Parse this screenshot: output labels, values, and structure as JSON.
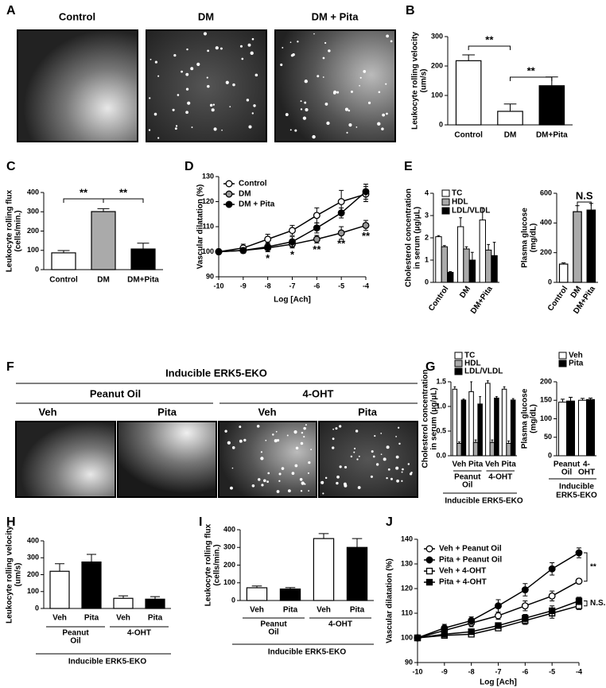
{
  "figure": {
    "panel_a": {
      "label": "A",
      "titles": [
        "Control",
        "DM",
        "DM + Pita"
      ]
    },
    "panel_f": {
      "label": "F",
      "title": "Inducible ERK5-EKO",
      "groups": [
        "Peanut Oil",
        "4-OHT"
      ],
      "treatments": [
        "Veh",
        "Pita",
        "Veh",
        "Pita"
      ]
    }
  },
  "chart_data": [
    {
      "type": "bar",
      "panel": "B",
      "categories": [
        "Control",
        "DM",
        "DM+Pita"
      ],
      "values": [
        218,
        46,
        133
      ],
      "errors": [
        20,
        25,
        30
      ],
      "colors": [
        "#ffffff",
        "#ffffff",
        "#000000"
      ],
      "ylim": [
        0,
        300
      ],
      "yticks": [
        0,
        100,
        200,
        300
      ],
      "ylabel": [
        "Leukocyte rolling velocity",
        "(um/s)"
      ],
      "annotations": [
        "**",
        "**"
      ]
    },
    {
      "type": "bar",
      "panel": "C",
      "categories": [
        "Control",
        "DM",
        "DM+Pita"
      ],
      "values": [
        87,
        301,
        107
      ],
      "errors": [
        12,
        15,
        30
      ],
      "colors": [
        "#ffffff",
        "#aaaaaa",
        "#000000"
      ],
      "ylim": [
        0,
        400
      ],
      "yticks": [
        0,
        100,
        200,
        300,
        400
      ],
      "ylabel": [
        "Leukocyte rolling flux",
        "(cells/min.)"
      ],
      "annotations": [
        "**",
        "**"
      ]
    },
    {
      "type": "line",
      "panel": "D",
      "x": [
        -10,
        -9,
        -8,
        -7,
        -6,
        -5,
        -4
      ],
      "xlim": [
        -10,
        -4
      ],
      "xticks": [
        -10,
        -9,
        -8,
        -7,
        -6,
        -5,
        -4
      ],
      "ylim": [
        90,
        130
      ],
      "yticks": [
        90,
        100,
        110,
        120,
        130
      ],
      "xlabel": "Log [Ach]",
      "ylabel": [
        "Vascular dilatation (%)"
      ],
      "series": [
        {
          "name": "Control",
          "color": "#ffffff",
          "marker": "circle",
          "values": [
            100,
            101.5,
            105,
            108.5,
            114.5,
            120,
            123
          ],
          "errors": [
            1,
            1.5,
            2,
            2,
            3,
            4.5,
            3
          ]
        },
        {
          "name": "DM",
          "color": "#999999",
          "marker": "circle",
          "values": [
            100,
            100.5,
            101.5,
            103,
            105,
            107.5,
            110.5
          ],
          "errors": [
            1,
            1,
            1.5,
            1.5,
            1.5,
            2.5,
            2
          ]
        },
        {
          "name": "DM + Pita",
          "color": "#000000",
          "marker": "circle",
          "values": [
            100,
            100.5,
            102,
            104,
            109.5,
            115.5,
            124
          ],
          "errors": [
            1,
            1,
            1.5,
            2,
            2,
            2,
            3
          ]
        }
      ],
      "annotations": [
        "*",
        "*",
        "**",
        "**",
        "**"
      ]
    },
    {
      "type": "grouped_bar",
      "panel": "E",
      "categories": [
        "Control",
        "DM",
        "DM+Pita"
      ],
      "ylim": [
        0,
        4
      ],
      "yticks": [
        0,
        1,
        2,
        3,
        4
      ],
      "ylabel": [
        "Cholesterol concentration",
        "in serum (μg/μL)"
      ],
      "series": [
        {
          "name": "TC",
          "color": "#ffffff",
          "values": [
            2.05,
            2.5,
            2.8
          ],
          "errors": [
            0.05,
            0.4,
            0.55
          ]
        },
        {
          "name": "HDL",
          "color": "#aaaaaa",
          "values": [
            1.6,
            1.5,
            1.45
          ],
          "errors": [
            0.05,
            0.1,
            0.25
          ]
        },
        {
          "name": "LDL/VLDL",
          "color": "#000000",
          "values": [
            0.45,
            1.0,
            1.2
          ],
          "errors": [
            0.03,
            0.35,
            0.6
          ]
        }
      ]
    },
    {
      "type": "bar",
      "categories": [
        "Control",
        "DM",
        "DM+Pita"
      ],
      "values": [
        123,
        476,
        487
      ],
      "errors": [
        8,
        40,
        45
      ],
      "colors": [
        "#ffffff",
        "#aaaaaa",
        "#000000"
      ],
      "ylim": [
        0,
        600
      ],
      "yticks": [
        0,
        200,
        400,
        600
      ],
      "ylabel": [
        "Plasma glucose",
        "(mg/dL)"
      ],
      "annotations": [
        "N.S"
      ]
    },
    {
      "type": "grouped_bar",
      "panel": "G",
      "categories": [
        "Veh",
        "Pita",
        "Veh",
        "Pita"
      ],
      "groups": [
        [
          "Peanut",
          "Oil"
        ],
        [
          "4-OHT"
        ]
      ],
      "footnote": [
        "Inducible ERK5-EKO"
      ],
      "ylim": [
        0,
        1.5
      ],
      "yticks": [
        {
          "value": 0,
          "label": "0.0"
        },
        0.5,
        {
          "value": 1,
          "label": "1.0"
        },
        1.5
      ],
      "ylabel": [
        "Cholesterol concentration",
        "in serum (μg/μL)"
      ],
      "series": [
        {
          "name": "TC",
          "color": "#ffffff",
          "values": [
            1.35,
            1.3,
            1.47,
            1.35
          ],
          "errors": [
            0.05,
            0.2,
            0.05,
            0.05
          ]
        },
        {
          "name": "HDL",
          "color": "#aaaaaa",
          "values": [
            0.25,
            0.27,
            0.27,
            0.25
          ],
          "errors": [
            0.03,
            0.05,
            0.05,
            0.05
          ]
        },
        {
          "name": "LDL/VLDL",
          "color": "#000000",
          "values": [
            1.13,
            1.05,
            1.17,
            1.13
          ],
          "errors": [
            0.02,
            0.15,
            0.03,
            0.03
          ]
        }
      ]
    },
    {
      "type": "grouped_bar",
      "categories": [
        [
          "Peanut",
          "Oil"
        ],
        [
          "4-",
          "OHT"
        ]
      ],
      "footnote": [
        "Inducible",
        "ERK5-EKO"
      ],
      "ylim": [
        0,
        200
      ],
      "yticks": [
        0,
        50,
        100,
        150,
        200
      ],
      "ylabel": [
        "Plasma glucose",
        "(mg/dL)"
      ],
      "series": [
        {
          "name": "Veh",
          "color": "#ffffff",
          "values": [
            145,
            150
          ],
          "errors": [
            8,
            5
          ]
        },
        {
          "name": "Pita",
          "color": "#000000",
          "values": [
            148,
            152
          ],
          "errors": [
            10,
            4
          ]
        }
      ]
    },
    {
      "type": "bar",
      "panel": "H",
      "categories": [
        "Veh",
        "Pita",
        "Veh",
        "Pita"
      ],
      "groups": [
        [
          "Peanut",
          "Oil"
        ],
        [
          "4-OHT"
        ]
      ],
      "footnote": [
        "Inducible ERK5-EKO"
      ],
      "values": [
        220,
        275,
        60,
        55
      ],
      "errors": [
        45,
        45,
        15,
        15
      ],
      "colors": [
        "#ffffff",
        "#000000",
        "#ffffff",
        "#000000"
      ],
      "ylim": [
        0,
        400
      ],
      "yticks": [
        0,
        100,
        200,
        300,
        400
      ],
      "ylabel": [
        "Leukocyte rolling velocity",
        "(um/s)"
      ]
    },
    {
      "type": "bar",
      "panel": "I",
      "categories": [
        "Veh",
        "Pita",
        "Veh",
        "Pita"
      ],
      "groups": [
        [
          "Peanut",
          "Oil"
        ],
        [
          "4-OHT"
        ]
      ],
      "footnote": [
        "Inducible ERK5-EKO"
      ],
      "values": [
        72,
        65,
        350,
        300
      ],
      "errors": [
        10,
        8,
        28,
        50
      ],
      "colors": [
        "#ffffff",
        "#000000",
        "#ffffff",
        "#000000"
      ],
      "ylim": [
        0,
        400
      ],
      "yticks": [
        0,
        100,
        200,
        300,
        400
      ],
      "ylabel": [
        "Leukocyte rolling flux",
        "(cells/min.)"
      ]
    },
    {
      "type": "line",
      "panel": "J",
      "x": [
        -10,
        -9,
        -8,
        -7,
        -6,
        -5,
        -4
      ],
      "xlim": [
        -10,
        -4
      ],
      "xticks": [
        -10,
        -9,
        -8,
        -7,
        -6,
        -5,
        -4
      ],
      "ylim": [
        90,
        140
      ],
      "yticks": [
        90,
        100,
        110,
        120,
        130,
        140
      ],
      "xlabel": "Log [Ach]",
      "ylabel": [
        "Vascular dilatation (%)"
      ],
      "series": [
        {
          "name": "Veh + Peanut Oil",
          "color": "#ffffff",
          "marker": "circle",
          "values": [
            100,
            103,
            106,
            109,
            113,
            117,
            123
          ],
          "errors": [
            1,
            1,
            1.5,
            1.5,
            2,
            2,
            1
          ]
        },
        {
          "name": "Pita + Peanut Oil",
          "color": "#000000",
          "marker": "circle",
          "values": [
            100,
            104,
            107,
            113,
            119.5,
            128,
            134.5
          ],
          "errors": [
            1,
            1.5,
            1.5,
            2.5,
            2.5,
            2.5,
            2
          ]
        },
        {
          "name": "Veh + 4-OHT",
          "color": "#ffffff",
          "marker": "square",
          "values": [
            100,
            101,
            101.5,
            104,
            107,
            110,
            113
          ],
          "errors": [
            1,
            1,
            1,
            1,
            1.5,
            2,
            1.5
          ]
        },
        {
          "name": "Pita + 4-OHT",
          "color": "#000000",
          "marker": "square",
          "values": [
            100,
            101.5,
            102.5,
            105,
            108,
            111,
            115
          ],
          "errors": [
            1,
            1,
            1,
            1,
            1.5,
            2,
            1.5
          ]
        }
      ],
      "annotations": [
        "**",
        "N.S."
      ]
    }
  ]
}
